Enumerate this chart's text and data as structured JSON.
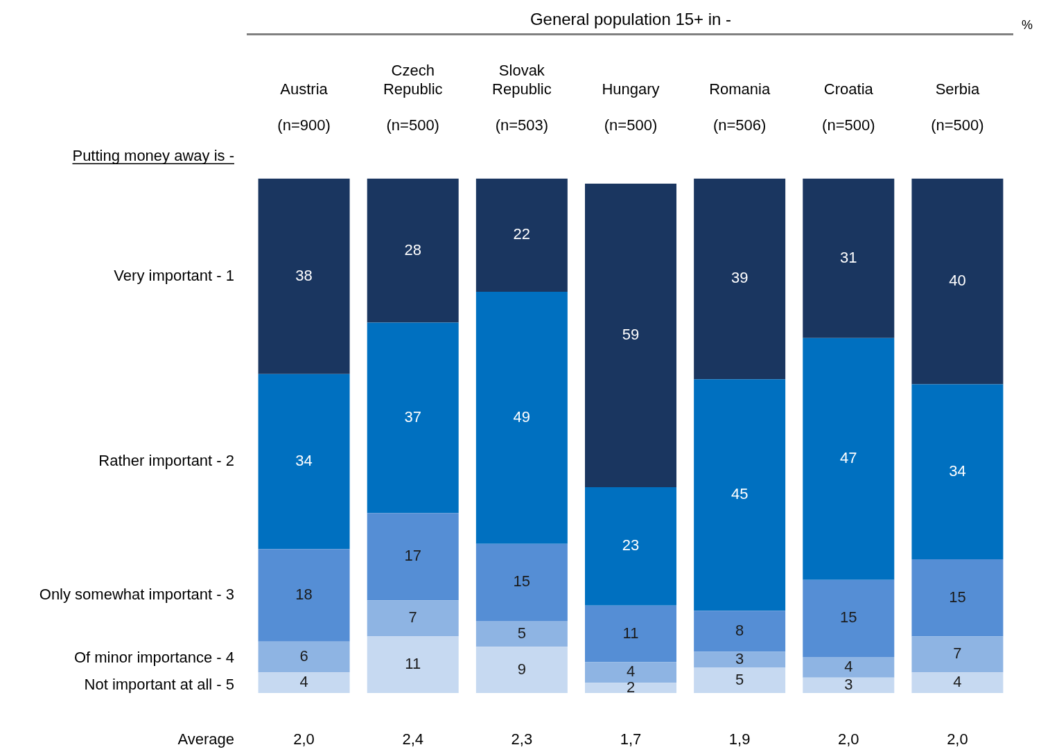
{
  "chart_data": {
    "type": "bar",
    "title": "General population 15+ in -",
    "legend_title": "Putting money away is -",
    "categories": [
      "Austria (n=900)",
      "Czech Republic (n=500)",
      "Slovak Republic (n=503)",
      "Hungary (n=500)",
      "Romania (n=506)",
      "Croatia (n=500)",
      "Serbia (n=500)"
    ],
    "stacked": true,
    "data_labels": true,
    "ylim": [
      0,
      100
    ],
    "tick_labels": "x",
    "grid": false,
    "legend": "left",
    "series": [
      {
        "name": "Not important at all - 5",
        "color": "#c6d9f1",
        "values": [
          4,
          11,
          9,
          2,
          5,
          3,
          4
        ]
      },
      {
        "name": "Of minor importance - 4",
        "color": "#8eb4e3",
        "values": [
          6,
          7,
          5,
          4,
          3,
          4,
          7
        ]
      },
      {
        "name": "Only somewhat important - 3",
        "color": "#558ed5",
        "values": [
          18,
          17,
          15,
          11,
          8,
          15,
          15
        ]
      },
      {
        "name": "Rather important - 2",
        "color": "#0070c0",
        "values": [
          34,
          37,
          49,
          23,
          45,
          47,
          34
        ]
      },
      {
        "name": "Very important - 1",
        "color": "#1a3660",
        "values": [
          38,
          28,
          22,
          59,
          39,
          31,
          40
        ]
      }
    ],
    "annotations": [
      "%",
      "Average",
      "2,0",
      "2,4",
      "2,3",
      "1,7",
      "1,9",
      "2,0",
      "2,0"
    ]
  }
}
